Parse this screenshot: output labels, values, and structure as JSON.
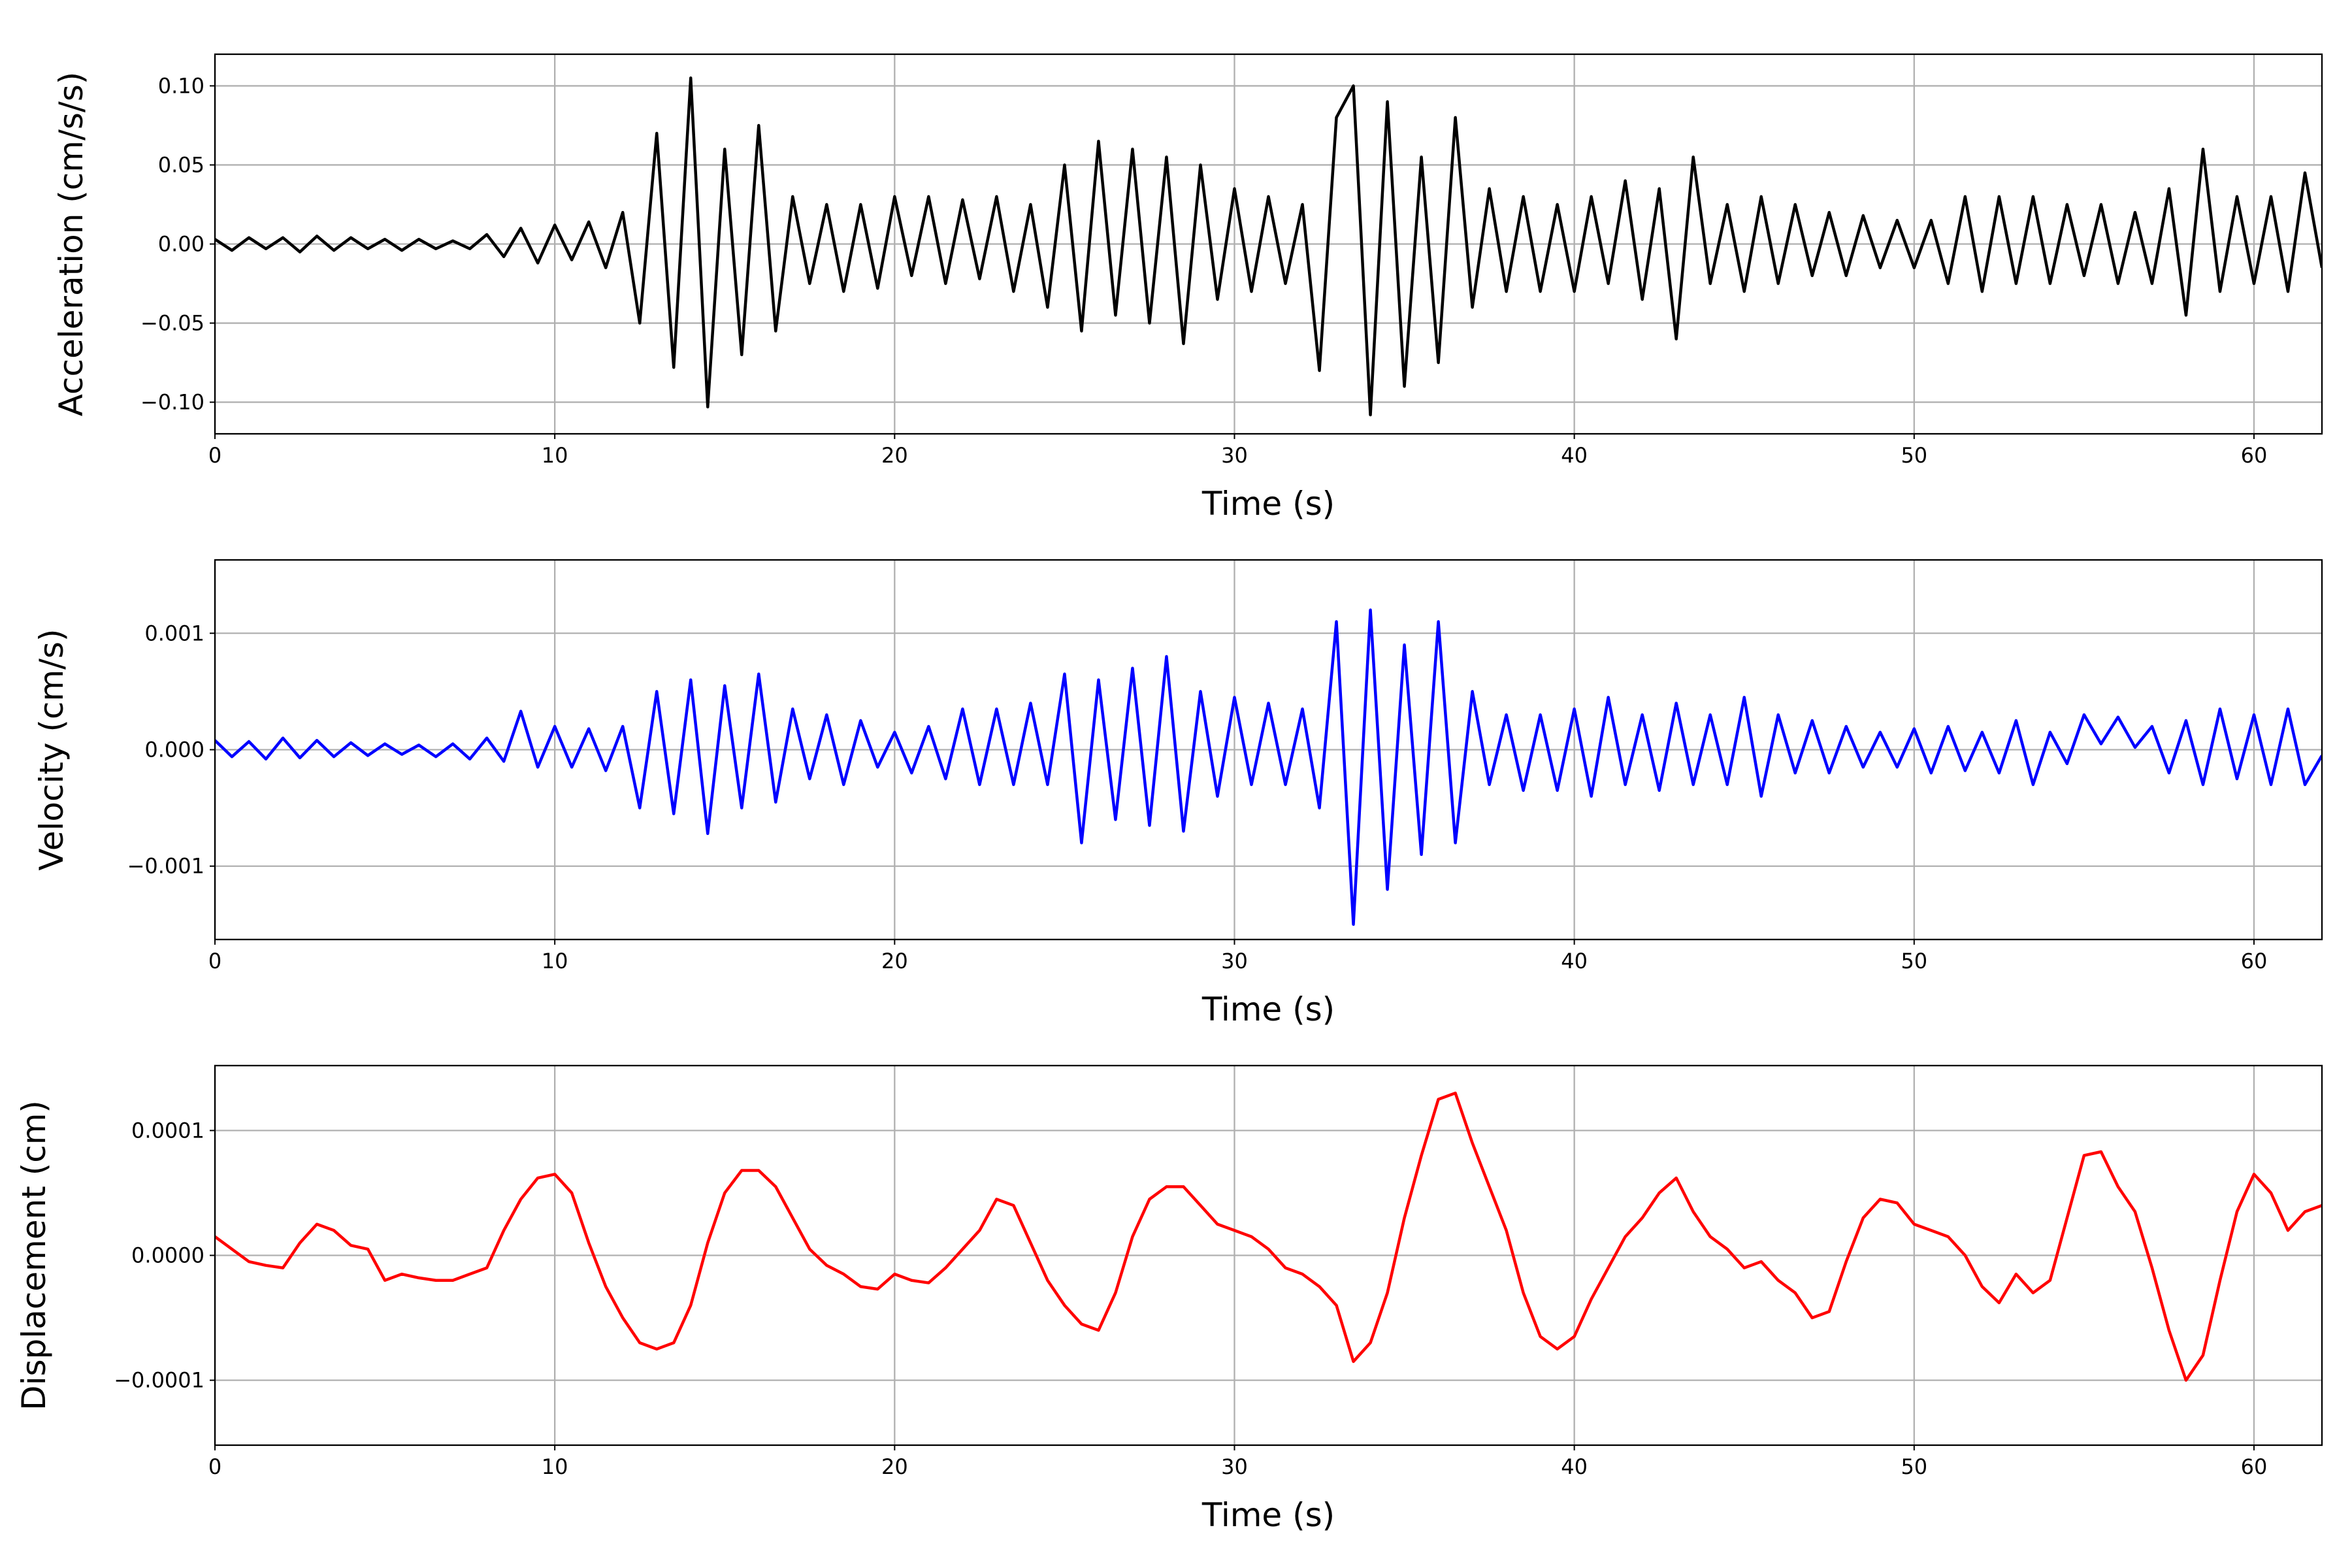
{
  "chart_data": [
    {
      "type": "line",
      "x_label": "Time (s)",
      "y_label": "Acceleration (cm/s/s)",
      "color": "#000000",
      "grid": true,
      "xlim": [
        0,
        62
      ],
      "xticks": [
        0,
        10,
        20,
        30,
        40,
        50,
        60
      ],
      "ylim": [
        -0.12,
        0.12
      ],
      "yticks": [
        {
          "value": -0.1,
          "label": "−0.10"
        },
        {
          "value": -0.05,
          "label": "−0.05"
        },
        {
          "value": 0,
          "label": "0.00"
        },
        {
          "value": 0.05,
          "label": "0.05"
        },
        {
          "value": 0.1,
          "label": "0.10"
        }
      ],
      "x": [
        0,
        0.5,
        1,
        1.5,
        2,
        2.5,
        3,
        3.5,
        4,
        4.5,
        5,
        5.5,
        6,
        6.5,
        7,
        7.5,
        8,
        8.5,
        9,
        9.5,
        10,
        10.5,
        11,
        11.5,
        12,
        12.5,
        13,
        13.5,
        14,
        14.5,
        15,
        15.5,
        16,
        16.5,
        17,
        17.5,
        18,
        18.5,
        19,
        19.5,
        20,
        20.5,
        21,
        21.5,
        22,
        22.5,
        23,
        23.5,
        24,
        24.5,
        25,
        25.5,
        26,
        26.5,
        27,
        27.5,
        28,
        28.5,
        29,
        29.5,
        30,
        30.5,
        31,
        31.5,
        32,
        32.5,
        33,
        33.5,
        34,
        34.5,
        35,
        35.5,
        36,
        36.5,
        37,
        37.5,
        38,
        38.5,
        39,
        39.5,
        40,
        40.5,
        41,
        41.5,
        42,
        42.5,
        43,
        43.5,
        44,
        44.5,
        45,
        45.5,
        46,
        46.5,
        47,
        47.5,
        48,
        48.5,
        49,
        49.5,
        50,
        50.5,
        51,
        51.5,
        52,
        52.5,
        53,
        53.5,
        54,
        54.5,
        55,
        55.5,
        56,
        56.5,
        57,
        57.5,
        58,
        58.5,
        59,
        59.5,
        60,
        60.5,
        61,
        61.5,
        62
      ],
      "values": [
        0.003,
        -0.004,
        0.004,
        -0.003,
        0.004,
        -0.005,
        0.005,
        -0.004,
        0.004,
        -0.003,
        0.003,
        -0.004,
        0.003,
        -0.003,
        0.002,
        -0.003,
        0.006,
        -0.008,
        0.01,
        -0.012,
        0.012,
        -0.01,
        0.014,
        -0.015,
        0.02,
        -0.05,
        0.07,
        -0.078,
        0.105,
        -0.103,
        0.06,
        -0.07,
        0.075,
        -0.055,
        0.03,
        -0.025,
        0.025,
        -0.03,
        0.025,
        -0.028,
        0.03,
        -0.02,
        0.03,
        -0.025,
        0.028,
        -0.022,
        0.03,
        -0.03,
        0.025,
        -0.04,
        0.05,
        -0.055,
        0.065,
        -0.045,
        0.06,
        -0.05,
        0.055,
        -0.063,
        0.05,
        -0.035,
        0.035,
        -0.03,
        0.03,
        -0.025,
        0.025,
        -0.08,
        0.08,
        0.1,
        -0.108,
        0.09,
        -0.09,
        0.055,
        -0.075,
        0.08,
        -0.04,
        0.035,
        -0.03,
        0.03,
        -0.03,
        0.025,
        -0.03,
        0.03,
        -0.025,
        0.04,
        -0.035,
        0.035,
        -0.06,
        0.055,
        -0.025,
        0.025,
        -0.03,
        0.03,
        -0.025,
        0.025,
        -0.02,
        0.02,
        -0.02,
        0.018,
        -0.015,
        0.015,
        -0.015,
        0.015,
        -0.025,
        0.03,
        -0.03,
        0.03,
        -0.025,
        0.03,
        -0.025,
        0.025,
        -0.02,
        0.025,
        -0.025,
        0.02,
        -0.025,
        0.035,
        -0.045,
        0.06,
        -0.03,
        0.03,
        -0.025,
        0.03,
        -0.03,
        0.045,
        -0.015
      ]
    },
    {
      "type": "line",
      "x_label": "Time (s)",
      "y_label": "Velocity (cm/s)",
      "color": "#0000ff",
      "grid": true,
      "xlim": [
        0,
        62
      ],
      "xticks": [
        0,
        10,
        20,
        30,
        40,
        50,
        60
      ],
      "ylim": [
        -0.00163,
        0.00163
      ],
      "yticks": [
        {
          "value": -0.001,
          "label": "−0.001"
        },
        {
          "value": 0,
          "label": "0.000"
        },
        {
          "value": 0.001,
          "label": "0.001"
        }
      ],
      "x": [
        0,
        0.5,
        1,
        1.5,
        2,
        2.5,
        3,
        3.5,
        4,
        4.5,
        5,
        5.5,
        6,
        6.5,
        7,
        7.5,
        8,
        8.5,
        9,
        9.5,
        10,
        10.5,
        11,
        11.5,
        12,
        12.5,
        13,
        13.5,
        14,
        14.5,
        15,
        15.5,
        16,
        16.5,
        17,
        17.5,
        18,
        18.5,
        19,
        19.5,
        20,
        20.5,
        21,
        21.5,
        22,
        22.5,
        23,
        23.5,
        24,
        24.5,
        25,
        25.5,
        26,
        26.5,
        27,
        27.5,
        28,
        28.5,
        29,
        29.5,
        30,
        30.5,
        31,
        31.5,
        32,
        32.5,
        33,
        33.5,
        34,
        34.5,
        35,
        35.5,
        36,
        36.5,
        37,
        37.5,
        38,
        38.5,
        39,
        39.5,
        40,
        40.5,
        41,
        41.5,
        42,
        42.5,
        43,
        43.5,
        44,
        44.5,
        45,
        45.5,
        46,
        46.5,
        47,
        47.5,
        48,
        48.5,
        49,
        49.5,
        50,
        50.5,
        51,
        51.5,
        52,
        52.5,
        53,
        53.5,
        54,
        54.5,
        55,
        55.5,
        56,
        56.5,
        57,
        57.5,
        58,
        58.5,
        59,
        59.5,
        60,
        60.5,
        61,
        61.5,
        62
      ],
      "values": [
        8e-05,
        -6e-05,
        7e-05,
        -8e-05,
        0.0001,
        -7e-05,
        8e-05,
        -6e-05,
        6e-05,
        -5e-05,
        5e-05,
        -4e-05,
        4e-05,
        -6e-05,
        5e-05,
        -8e-05,
        0.0001,
        -0.0001,
        0.00033,
        -0.00015,
        0.0002,
        -0.00015,
        0.00018,
        -0.00018,
        0.0002,
        -0.0005,
        0.0005,
        -0.00055,
        0.0006,
        -0.00072,
        0.00055,
        -0.0005,
        0.00065,
        -0.00045,
        0.00035,
        -0.00025,
        0.0003,
        -0.0003,
        0.00025,
        -0.00015,
        0.00015,
        -0.0002,
        0.0002,
        -0.00025,
        0.00035,
        -0.0003,
        0.00035,
        -0.0003,
        0.0004,
        -0.0003,
        0.00065,
        -0.0008,
        0.0006,
        -0.0006,
        0.0007,
        -0.00065,
        0.0008,
        -0.0007,
        0.0005,
        -0.0004,
        0.00045,
        -0.0003,
        0.0004,
        -0.0003,
        0.00035,
        -0.0005,
        0.0011,
        -0.0015,
        0.0012,
        -0.0012,
        0.0009,
        -0.0009,
        0.0011,
        -0.0008,
        0.0005,
        -0.0003,
        0.0003,
        -0.00035,
        0.0003,
        -0.00035,
        0.00035,
        -0.0004,
        0.00045,
        -0.0003,
        0.0003,
        -0.00035,
        0.0004,
        -0.0003,
        0.0003,
        -0.0003,
        0.00045,
        -0.0004,
        0.0003,
        -0.0002,
        0.00025,
        -0.0002,
        0.0002,
        -0.00015,
        0.00015,
        -0.00015,
        0.00018,
        -0.0002,
        0.0002,
        -0.00018,
        0.00015,
        -0.0002,
        0.00025,
        -0.0003,
        0.00015,
        -0.00012,
        0.0003,
        5e-05,
        0.00028,
        2e-05,
        0.0002,
        -0.0002,
        0.00025,
        -0.0003,
        0.00035,
        -0.00025,
        0.0003,
        -0.0003,
        0.00035,
        -0.0003,
        -5e-05
      ]
    },
    {
      "type": "line",
      "x_label": "Time (s)",
      "y_label": "Displacement (cm)",
      "color": "#ff0000",
      "grid": true,
      "xlim": [
        0,
        62
      ],
      "xticks": [
        0,
        10,
        20,
        30,
        40,
        50,
        60
      ],
      "ylim": [
        -0.000152,
        0.000152
      ],
      "yticks": [
        {
          "value": -0.0001,
          "label": "−0.0001"
        },
        {
          "value": 0,
          "label": "0.0000"
        },
        {
          "value": 0.0001,
          "label": "0.0001"
        }
      ],
      "x": [
        0,
        0.5,
        1,
        1.5,
        2,
        2.5,
        3,
        3.5,
        4,
        4.5,
        5,
        5.5,
        6,
        6.5,
        7,
        7.5,
        8,
        8.5,
        9,
        9.5,
        10,
        10.5,
        11,
        11.5,
        12,
        12.5,
        13,
        13.5,
        14,
        14.5,
        15,
        15.5,
        16,
        16.5,
        17,
        17.5,
        18,
        18.5,
        19,
        19.5,
        20,
        20.5,
        21,
        21.5,
        22,
        22.5,
        23,
        23.5,
        24,
        24.5,
        25,
        25.5,
        26,
        26.5,
        27,
        27.5,
        28,
        28.5,
        29,
        29.5,
        30,
        30.5,
        31,
        31.5,
        32,
        32.5,
        33,
        33.5,
        34,
        34.5,
        35,
        35.5,
        36,
        36.5,
        37,
        37.5,
        38,
        38.5,
        39,
        39.5,
        40,
        40.5,
        41,
        41.5,
        42,
        42.5,
        43,
        43.5,
        44,
        44.5,
        45,
        45.5,
        46,
        46.5,
        47,
        47.5,
        48,
        48.5,
        49,
        49.5,
        50,
        50.5,
        51,
        51.5,
        52,
        52.5,
        53,
        53.5,
        54,
        54.5,
        55,
        55.5,
        56,
        56.5,
        57,
        57.5,
        58,
        58.5,
        59,
        59.5,
        60,
        60.5,
        61,
        61.5,
        62
      ],
      "values": [
        1.5e-05,
        5e-06,
        -5e-06,
        -8e-06,
        -1e-05,
        1e-05,
        2.5e-05,
        2e-05,
        8e-06,
        5e-06,
        -2e-05,
        -1.5e-05,
        -1.8e-05,
        -2e-05,
        -2e-05,
        -1.5e-05,
        -1e-05,
        2e-05,
        4.5e-05,
        6.2e-05,
        6.5e-05,
        5e-05,
        1e-05,
        -2.5e-05,
        -5e-05,
        -7e-05,
        -7.5e-05,
        -7e-05,
        -4e-05,
        1e-05,
        5e-05,
        6.8e-05,
        6.8e-05,
        5.5e-05,
        3e-05,
        5e-06,
        -8e-06,
        -1.5e-05,
        -2.5e-05,
        -2.7e-05,
        -1.5e-05,
        -2e-05,
        -2.2e-05,
        -1e-05,
        5e-06,
        2e-05,
        4.5e-05,
        4e-05,
        1e-05,
        -2e-05,
        -4e-05,
        -5.5e-05,
        -6e-05,
        -3e-05,
        1.5e-05,
        4.5e-05,
        5.5e-05,
        5.5e-05,
        4e-05,
        2.5e-05,
        2e-05,
        1.5e-05,
        5e-06,
        -1e-05,
        -1.5e-05,
        -2.5e-05,
        -4e-05,
        -8.5e-05,
        -7e-05,
        -3e-05,
        3e-05,
        8e-05,
        0.000125,
        0.00013,
        9e-05,
        5.5e-05,
        2e-05,
        -3e-05,
        -6.5e-05,
        -7.5e-05,
        -6.5e-05,
        -3.5e-05,
        -1e-05,
        1.5e-05,
        3e-05,
        5e-05,
        6.2e-05,
        3.5e-05,
        1.5e-05,
        5e-06,
        -1e-05,
        -5e-06,
        -2e-05,
        -3e-05,
        -5e-05,
        -4.5e-05,
        -5e-06,
        3e-05,
        4.5e-05,
        4.2e-05,
        2.5e-05,
        2e-05,
        1.5e-05,
        0.0,
        -2.5e-05,
        -3.8e-05,
        -1.5e-05,
        -3e-05,
        -2e-05,
        3e-05,
        8e-05,
        8.3e-05,
        5.5e-05,
        3.5e-05,
        -1e-05,
        -6e-05,
        -0.0001,
        -8e-05,
        -2e-05,
        3.5e-05,
        6.5e-05,
        5e-05,
        2e-05,
        3.5e-05,
        4e-05
      ]
    }
  ]
}
